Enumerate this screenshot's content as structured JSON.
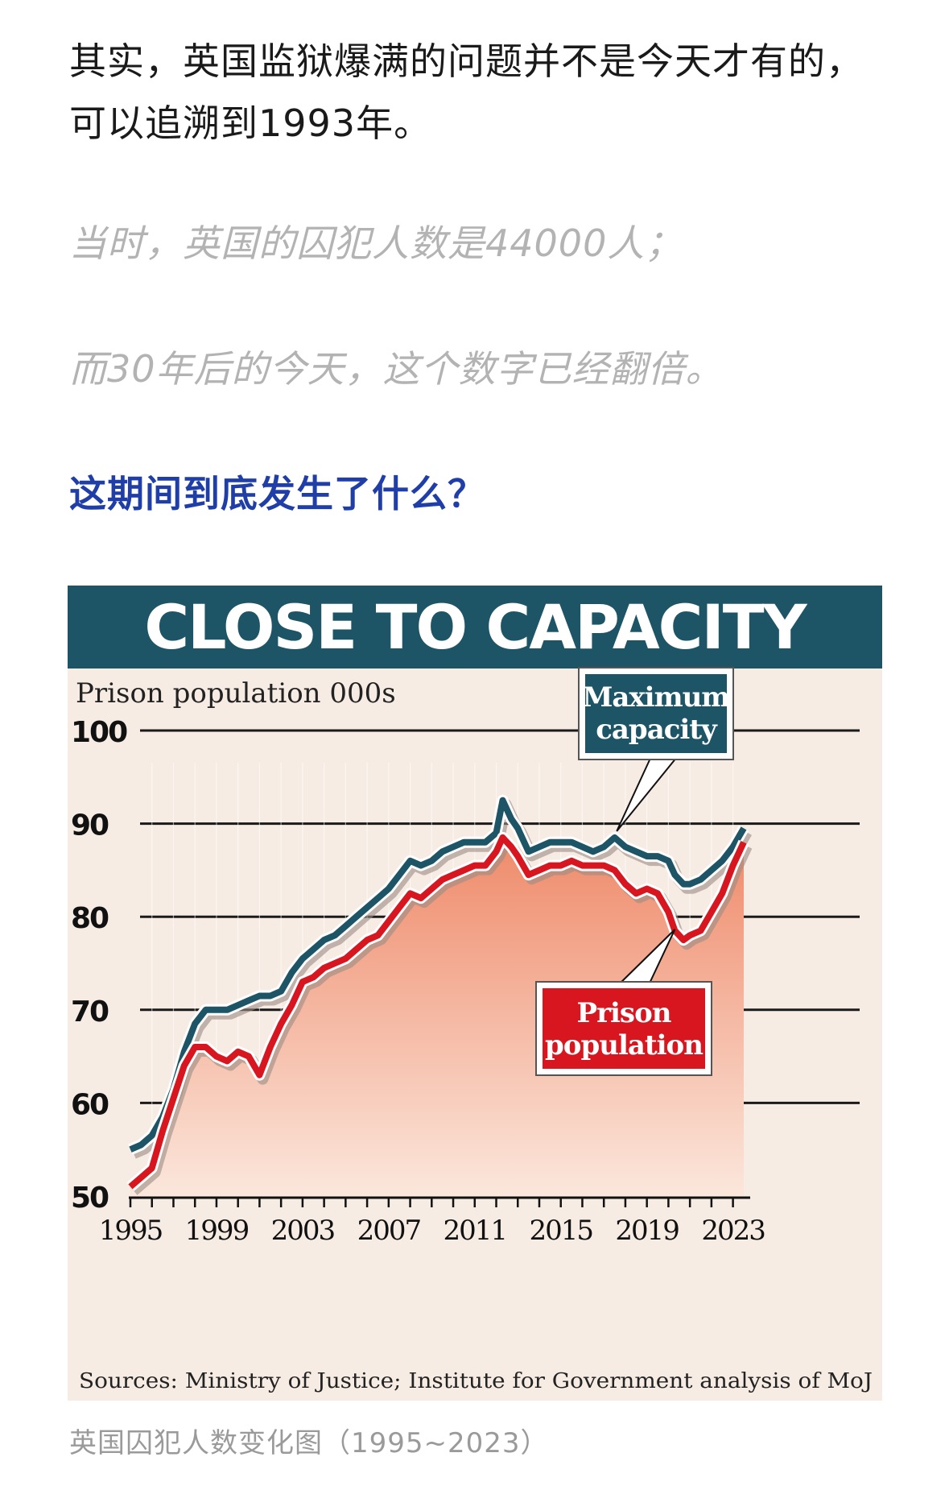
{
  "article": {
    "p1": "其实，英国监狱爆满的问题并不是今天才有的，可以追溯到1993年。",
    "p2": "当时，英国的囚犯人数是44000人；",
    "p3": "而30年后的今天，这个数字已经翻倍。",
    "p4": "这期间到底发生了什么？",
    "caption": "英国囚犯人数变化图（1995~2023）"
  },
  "chart_data": {
    "type": "line",
    "title": "CLOSE TO CAPACITY",
    "ylabel": "Prison population 000s",
    "xlabel": "",
    "source": "Sources: Ministry of Justice; Institute for Government analysis of MoJ",
    "ylim": [
      50,
      100
    ],
    "xlim": [
      1995,
      2023.8
    ],
    "yticks": [
      50,
      60,
      70,
      80,
      90,
      100
    ],
    "xticks": [
      1995,
      1999,
      2003,
      2007,
      2011,
      2015,
      2019,
      2023
    ],
    "grid": true,
    "series": [
      {
        "name": "Maximum capacity",
        "color": "#1d5567",
        "points": [
          [
            1995,
            55
          ],
          [
            1995.5,
            55.5
          ],
          [
            1996,
            56.5
          ],
          [
            1996.5,
            58.5
          ],
          [
            1997,
            61.5
          ],
          [
            1997.5,
            65.5
          ],
          [
            1998,
            68.5
          ],
          [
            1998.5,
            70
          ],
          [
            1999,
            70
          ],
          [
            1999.5,
            70
          ],
          [
            2000,
            70.5
          ],
          [
            2000.5,
            71
          ],
          [
            2001,
            71.5
          ],
          [
            2001.5,
            71.5
          ],
          [
            2002,
            72
          ],
          [
            2002.5,
            74
          ],
          [
            2003,
            75.5
          ],
          [
            2003.5,
            76.5
          ],
          [
            2004,
            77.5
          ],
          [
            2004.5,
            78
          ],
          [
            2005,
            79
          ],
          [
            2005.5,
            80
          ],
          [
            2006,
            81
          ],
          [
            2006.5,
            82
          ],
          [
            2007,
            83
          ],
          [
            2007.5,
            84.5
          ],
          [
            2008,
            86
          ],
          [
            2008.5,
            85.5
          ],
          [
            2009,
            86
          ],
          [
            2009.5,
            87
          ],
          [
            2010,
            87.5
          ],
          [
            2010.5,
            88
          ],
          [
            2011,
            88
          ],
          [
            2011.5,
            88
          ],
          [
            2012,
            89
          ],
          [
            2012.3,
            92.5
          ],
          [
            2012.7,
            90.5
          ],
          [
            2013,
            89.5
          ],
          [
            2013.5,
            87
          ],
          [
            2014,
            87.5
          ],
          [
            2014.5,
            88
          ],
          [
            2015,
            88
          ],
          [
            2015.5,
            88
          ],
          [
            2016,
            87.5
          ],
          [
            2016.5,
            87
          ],
          [
            2017,
            87.5
          ],
          [
            2017.5,
            88.5
          ],
          [
            2018,
            87.5
          ],
          [
            2018.5,
            87
          ],
          [
            2019,
            86.5
          ],
          [
            2019.5,
            86.5
          ],
          [
            2020,
            86
          ],
          [
            2020.3,
            84.5
          ],
          [
            2020.7,
            83.5
          ],
          [
            2021,
            83.5
          ],
          [
            2021.5,
            84
          ],
          [
            2022,
            85
          ],
          [
            2022.5,
            86
          ],
          [
            2023,
            87.5
          ],
          [
            2023.5,
            89.5
          ]
        ]
      },
      {
        "name": "Prison population",
        "color": "#d8161f",
        "points": [
          [
            1995,
            51
          ],
          [
            1995.5,
            52
          ],
          [
            1996,
            53
          ],
          [
            1996.5,
            57
          ],
          [
            1997,
            60.5
          ],
          [
            1997.5,
            64
          ],
          [
            1998,
            66
          ],
          [
            1998.5,
            66
          ],
          [
            1999,
            65
          ],
          [
            1999.5,
            64.5
          ],
          [
            2000,
            65.5
          ],
          [
            2000.5,
            65
          ],
          [
            2001,
            63
          ],
          [
            2001.5,
            66
          ],
          [
            2002,
            68.5
          ],
          [
            2002.5,
            70.5
          ],
          [
            2003,
            73
          ],
          [
            2003.5,
            73.5
          ],
          [
            2004,
            74.5
          ],
          [
            2004.5,
            75
          ],
          [
            2005,
            75.5
          ],
          [
            2005.5,
            76.5
          ],
          [
            2006,
            77.5
          ],
          [
            2006.5,
            78
          ],
          [
            2007,
            79.5
          ],
          [
            2007.5,
            81
          ],
          [
            2008,
            82.5
          ],
          [
            2008.5,
            82
          ],
          [
            2009,
            83
          ],
          [
            2009.5,
            84
          ],
          [
            2010,
            84.5
          ],
          [
            2010.5,
            85
          ],
          [
            2011,
            85.5
          ],
          [
            2011.5,
            85.5
          ],
          [
            2012,
            87
          ],
          [
            2012.3,
            88.5
          ],
          [
            2012.7,
            87.5
          ],
          [
            2013,
            86.5
          ],
          [
            2013.5,
            84.5
          ],
          [
            2014,
            85
          ],
          [
            2014.5,
            85.5
          ],
          [
            2015,
            85.5
          ],
          [
            2015.5,
            86
          ],
          [
            2016,
            85.5
          ],
          [
            2016.5,
            85.5
          ],
          [
            2017,
            85.5
          ],
          [
            2017.5,
            85
          ],
          [
            2018,
            83.5
          ],
          [
            2018.5,
            82.5
          ],
          [
            2019,
            83
          ],
          [
            2019.5,
            82.5
          ],
          [
            2020,
            80.5
          ],
          [
            2020.3,
            78.5
          ],
          [
            2020.7,
            77.5
          ],
          [
            2021,
            78
          ],
          [
            2021.5,
            78.5
          ],
          [
            2022,
            80.5
          ],
          [
            2022.5,
            82.5
          ],
          [
            2023,
            85.5
          ],
          [
            2023.5,
            88
          ]
        ]
      }
    ],
    "annotations": [
      {
        "label": "Maximum capacity",
        "style": "teal-box"
      },
      {
        "label": "Prison population",
        "style": "red-box"
      }
    ],
    "colors": {
      "header_bg": "#1d5567",
      "plot_bg": "#f7ece4",
      "area_top": "#ef8a6a",
      "area_bottom": "#fbe7dc",
      "capacity_line": "#1d5567",
      "population_line": "#d8161f"
    }
  }
}
